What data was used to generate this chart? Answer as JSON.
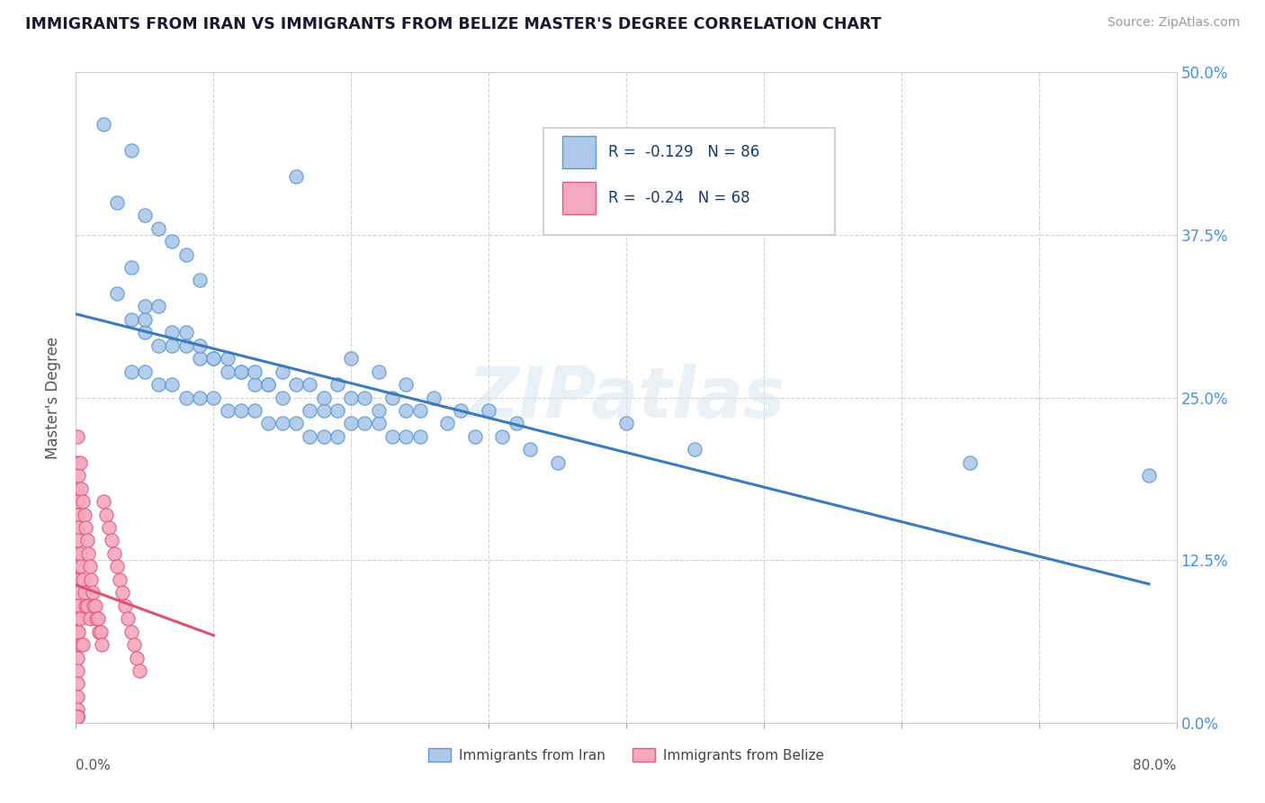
{
  "title": "IMMIGRANTS FROM IRAN VS IMMIGRANTS FROM BELIZE MASTER'S DEGREE CORRELATION CHART",
  "source": "Source: ZipAtlas.com",
  "ylabel": "Master's Degree",
  "R_iran": -0.129,
  "N_iran": 86,
  "R_belize": -0.24,
  "N_belize": 68,
  "color_iran": "#adc8e8",
  "color_belize": "#f5a8bf",
  "edge_iran": "#5b9bd5",
  "edge_belize": "#e06080",
  "line_color_iran": "#3a7abf",
  "line_color_belize": "#e05070",
  "watermark": "ZIPatlas",
  "xlim": [
    0.0,
    0.8
  ],
  "ylim": [
    0.0,
    0.5
  ],
  "ytick_vals": [
    0.0,
    0.125,
    0.25,
    0.375,
    0.5
  ],
  "ytick_labels_right": [
    "0.0%",
    "12.5%",
    "25.0%",
    "37.5%",
    "50.0%"
  ],
  "xtick_vals": [
    0.0,
    0.1,
    0.2,
    0.3,
    0.4,
    0.5,
    0.6,
    0.7,
    0.8
  ],
  "iran_x": [
    0.02,
    0.04,
    0.16,
    0.03,
    0.05,
    0.06,
    0.07,
    0.08,
    0.04,
    0.09,
    0.03,
    0.05,
    0.06,
    0.04,
    0.08,
    0.05,
    0.07,
    0.06,
    0.09,
    0.1,
    0.04,
    0.11,
    0.05,
    0.12,
    0.06,
    0.13,
    0.07,
    0.14,
    0.08,
    0.15,
    0.09,
    0.1,
    0.17,
    0.11,
    0.18,
    0.12,
    0.19,
    0.13,
    0.2,
    0.14,
    0.21,
    0.15,
    0.22,
    0.16,
    0.23,
    0.17,
    0.24,
    0.18,
    0.25,
    0.19,
    0.2,
    0.22,
    0.24,
    0.26,
    0.28,
    0.3,
    0.32,
    0.08,
    0.1,
    0.12,
    0.14,
    0.16,
    0.18,
    0.2,
    0.22,
    0.24,
    0.05,
    0.07,
    0.09,
    0.11,
    0.13,
    0.15,
    0.17,
    0.19,
    0.21,
    0.23,
    0.25,
    0.27,
    0.29,
    0.31,
    0.33,
    0.35,
    0.4,
    0.45,
    0.65,
    0.78
  ],
  "iran_y": [
    0.46,
    0.44,
    0.42,
    0.4,
    0.39,
    0.38,
    0.37,
    0.36,
    0.35,
    0.34,
    0.33,
    0.32,
    0.32,
    0.31,
    0.3,
    0.3,
    0.29,
    0.29,
    0.28,
    0.28,
    0.27,
    0.27,
    0.27,
    0.27,
    0.26,
    0.26,
    0.26,
    0.26,
    0.25,
    0.25,
    0.25,
    0.25,
    0.24,
    0.24,
    0.24,
    0.24,
    0.24,
    0.24,
    0.23,
    0.23,
    0.23,
    0.23,
    0.23,
    0.23,
    0.22,
    0.22,
    0.22,
    0.22,
    0.22,
    0.22,
    0.28,
    0.27,
    0.26,
    0.25,
    0.24,
    0.24,
    0.23,
    0.29,
    0.28,
    0.27,
    0.26,
    0.26,
    0.25,
    0.25,
    0.24,
    0.24,
    0.31,
    0.3,
    0.29,
    0.28,
    0.27,
    0.27,
    0.26,
    0.26,
    0.25,
    0.25,
    0.24,
    0.23,
    0.22,
    0.22,
    0.21,
    0.2,
    0.23,
    0.21,
    0.2,
    0.19
  ],
  "belize_x": [
    0.001,
    0.001,
    0.001,
    0.001,
    0.001,
    0.001,
    0.001,
    0.001,
    0.001,
    0.001,
    0.001,
    0.001,
    0.001,
    0.001,
    0.001,
    0.001,
    0.001,
    0.001,
    0.001,
    0.001,
    0.001,
    0.001,
    0.001,
    0.001,
    0.002,
    0.002,
    0.002,
    0.003,
    0.003,
    0.003,
    0.004,
    0.004,
    0.004,
    0.005,
    0.005,
    0.005,
    0.006,
    0.006,
    0.007,
    0.007,
    0.008,
    0.008,
    0.009,
    0.01,
    0.01,
    0.011,
    0.012,
    0.013,
    0.014,
    0.015,
    0.016,
    0.017,
    0.018,
    0.019,
    0.02,
    0.022,
    0.024,
    0.026,
    0.028,
    0.03,
    0.032,
    0.034,
    0.036,
    0.038,
    0.04,
    0.042,
    0.044,
    0.046
  ],
  "belize_y": [
    0.22,
    0.2,
    0.18,
    0.17,
    0.16,
    0.15,
    0.14,
    0.13,
    0.12,
    0.11,
    0.1,
    0.09,
    0.08,
    0.07,
    0.06,
    0.05,
    0.04,
    0.03,
    0.02,
    0.01,
    0.005,
    0.005,
    0.005,
    0.005,
    0.19,
    0.12,
    0.07,
    0.2,
    0.13,
    0.08,
    0.18,
    0.12,
    0.06,
    0.17,
    0.11,
    0.06,
    0.16,
    0.1,
    0.15,
    0.09,
    0.14,
    0.09,
    0.13,
    0.12,
    0.08,
    0.11,
    0.1,
    0.09,
    0.09,
    0.08,
    0.08,
    0.07,
    0.07,
    0.06,
    0.17,
    0.16,
    0.15,
    0.14,
    0.13,
    0.12,
    0.11,
    0.1,
    0.09,
    0.08,
    0.07,
    0.06,
    0.05,
    0.04
  ]
}
